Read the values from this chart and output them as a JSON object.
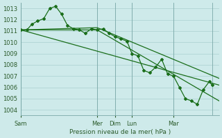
{
  "background_color": "#ceeaea",
  "grid_color": "#b0d4d4",
  "line_color": "#1a6e1a",
  "ylabel": "Pression niveau de la mer( hPa )",
  "ylim": [
    1003.5,
    1013.5
  ],
  "yticks": [
    1004,
    1005,
    1006,
    1007,
    1008,
    1009,
    1010,
    1011,
    1012,
    1013
  ],
  "xlim": [
    0,
    1.0
  ],
  "day_positions": [
    0.0,
    0.385,
    0.475,
    0.56,
    0.77,
    0.965
  ],
  "day_labels": [
    "Sam",
    "Mer",
    "Dim",
    "Lun",
    "Mar"
  ],
  "series1_x": [
    0.0,
    0.03,
    0.055,
    0.085,
    0.115,
    0.145,
    0.175,
    0.205,
    0.235,
    0.265,
    0.295,
    0.325,
    0.355,
    0.385,
    0.415,
    0.445,
    0.475,
    0.505,
    0.535,
    0.56,
    0.59,
    0.62,
    0.65,
    0.68,
    0.71,
    0.74,
    0.77,
    0.8,
    0.83,
    0.86,
    0.89,
    0.92,
    0.95,
    0.965
  ],
  "series1_y": [
    1011.1,
    1011.1,
    1011.6,
    1011.9,
    1012.1,
    1013.0,
    1013.2,
    1012.5,
    1011.5,
    1011.2,
    1011.1,
    1010.8,
    1011.2,
    1011.1,
    1011.2,
    1010.8,
    1010.5,
    1010.3,
    1010.1,
    1009.0,
    1008.8,
    1007.5,
    1007.3,
    1007.8,
    1008.5,
    1007.2,
    1007.0,
    1006.0,
    1005.0,
    1004.8,
    1004.5,
    1005.8,
    1006.5,
    1006.2
  ],
  "trend1_x": [
    0.0,
    1.0
  ],
  "trend1_y": [
    1011.1,
    1006.2
  ],
  "trend2_x": [
    0.0,
    0.385,
    1.0
  ],
  "trend2_y": [
    1011.1,
    1011.1,
    1004.8
  ],
  "trend3_x": [
    0.0,
    0.385,
    1.0
  ],
  "trend3_y": [
    1011.1,
    1011.3,
    1006.8
  ]
}
